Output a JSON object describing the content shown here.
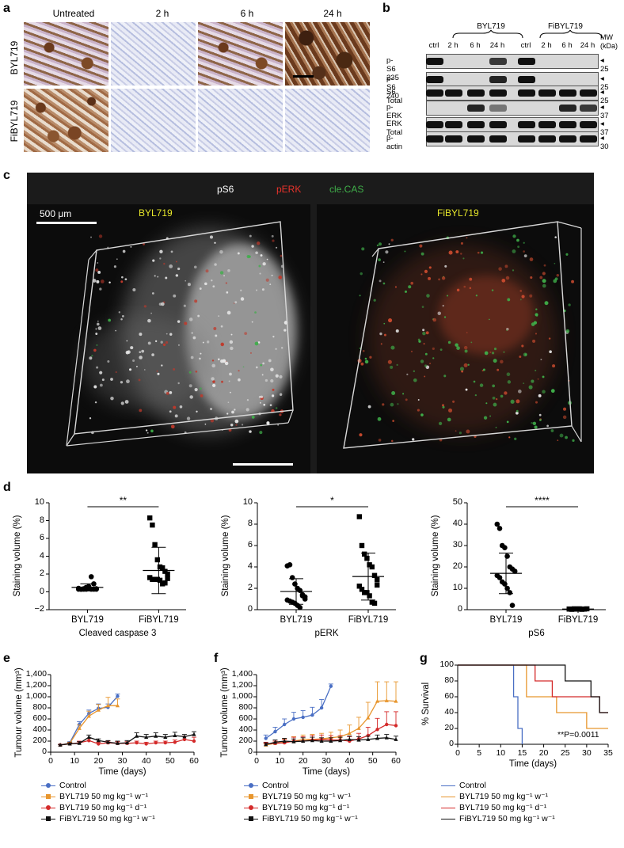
{
  "panel_labels": [
    "a",
    "b",
    "c",
    "d",
    "e",
    "f",
    "g"
  ],
  "panel_a": {
    "columns": [
      "Untreated",
      "2 h",
      "6 h",
      "24 h"
    ],
    "rows": [
      "BYL719",
      "FiBYL719"
    ]
  },
  "panel_b": {
    "group1": "BYL719",
    "group2": "FiBYL719",
    "lanes": [
      "ctrl",
      "2 h",
      "6 h",
      "24 h",
      "ctrl",
      "2 h",
      "6 h",
      "24 h"
    ],
    "mw_header": "MW\n(kDa)",
    "rows": [
      {
        "label": "p-S6 235",
        "mw": "25"
      },
      {
        "label": "p-S6 240",
        "mw": "25"
      },
      {
        "label": "S6 Total",
        "mw": "25"
      },
      {
        "label": "p-ERK",
        "mw": "37"
      },
      {
        "label": "ERK Total",
        "mw": "37"
      },
      {
        "label": "β-actin",
        "mw": "30"
      }
    ]
  },
  "panel_c": {
    "channels": [
      {
        "label": "pS6",
        "color": "#ffffff"
      },
      {
        "label": "pERK",
        "color": "#e8322b"
      },
      {
        "label": "cle.CAS",
        "color": "#3fae49"
      }
    ],
    "scale_label": "500 μm",
    "left_title": "BYL719",
    "right_title": "FiBYL719",
    "title_color": "#e6e62a"
  },
  "panel_d": {
    "charts": [
      {
        "ylabel": "Staining volume (%)",
        "xlabel": "Cleaved caspase 3",
        "categories": [
          "BYL719",
          "FiBYL719"
        ],
        "sig": "**",
        "yticks": [
          "10",
          "8",
          "6",
          "4",
          "2",
          "0",
          "−2"
        ]
      },
      {
        "ylabel": "Staining volume (%)",
        "xlabel": "pERK",
        "categories": [
          "BYL719",
          "FiBYL719"
        ],
        "sig": "*",
        "yticks": [
          "10",
          "8",
          "6",
          "4",
          "2",
          "0"
        ]
      },
      {
        "ylabel": "Staining volume (%)",
        "xlabel": "pS6",
        "categories": [
          "BYL719",
          "FiBYL719"
        ],
        "sig": "****",
        "yticks": [
          "50",
          "40",
          "30",
          "20",
          "10",
          "0"
        ]
      }
    ]
  },
  "panel_e": {
    "ylabel": "Tumour volume (mm³)",
    "xlabel": "Time (days)",
    "yticks": [
      "1,400",
      "1,200",
      "1,000",
      "800",
      "600",
      "400",
      "200",
      "0"
    ],
    "xticks": [
      "0",
      "10",
      "20",
      "30",
      "40",
      "50",
      "60"
    ]
  },
  "panel_f": {
    "ylabel": "Tumour volume (mm³)",
    "xlabel": "Time (days)",
    "yticks": [
      "1,400",
      "1,200",
      "1,000",
      "800",
      "600",
      "400",
      "200",
      "0"
    ],
    "xticks": [
      "0",
      "10",
      "20",
      "30",
      "40",
      "50",
      "60"
    ]
  },
  "panel_g": {
    "ylabel": "% Survival",
    "xlabel": "Time (days)",
    "yticks": [
      "100",
      "80",
      "60",
      "40",
      "20",
      "0"
    ],
    "xticks": [
      "0",
      "5",
      "10",
      "15",
      "20",
      "25",
      "30",
      "35"
    ],
    "pvalue": "**P=0.0011"
  },
  "legend": [
    {
      "label": "Control",
      "color": "#4a6fc4"
    },
    {
      "label": "BYL719 50 mg kg⁻¹ w⁻¹",
      "color": "#e8962e"
    },
    {
      "label": "BYL719 50 mg kg⁻¹ d⁻¹",
      "color": "#d42a2a"
    },
    {
      "label": "FiBYL719 50 mg kg⁻¹ w⁻¹",
      "color": "#111111"
    }
  ],
  "chart_data": [
    {
      "type": "scatter",
      "xlabel": "Cleaved caspase 3",
      "ylabel": "Staining volume (%)",
      "ylim": [
        -2,
        10
      ],
      "categories": [
        "BYL719",
        "FiBYL719"
      ],
      "series": [
        {
          "name": "BYL719",
          "values": [
            0.3,
            0.3,
            0.35,
            0.3,
            0.4,
            0.3,
            0.3,
            0.35,
            0.4,
            0.3,
            0.3,
            0.5,
            0.6,
            1.7,
            0.9,
            0.3
          ],
          "mean": 0.5,
          "sd": 0.4
        },
        {
          "name": "FiBYL719",
          "values": [
            8.3,
            7.5,
            5.3,
            3.6,
            2.8,
            2.7,
            2.3,
            2.0,
            1.6,
            1.4,
            1.4,
            1.4,
            1.3,
            0.9,
            1.0,
            1.5
          ],
          "mean": 2.4,
          "sd": 2.6
        }
      ]
    },
    {
      "type": "scatter",
      "xlabel": "pERK",
      "ylabel": "Staining volume (%)",
      "ylim": [
        0,
        10
      ],
      "categories": [
        "BYL719",
        "FiBYL719"
      ],
      "series": [
        {
          "name": "BYL719",
          "values": [
            4.1,
            4.2,
            3.0,
            2.4,
            2.0,
            1.8,
            1.3,
            1.2,
            0.9,
            0.8,
            0.7,
            0.6,
            0.4,
            0.2,
            1.4,
            1.0
          ],
          "mean": 1.7,
          "sd": 1.2
        },
        {
          "name": "FiBYL719",
          "values": [
            8.7,
            6.0,
            5.2,
            4.8,
            4.2,
            4.0,
            3.2,
            2.3,
            2.2,
            1.9,
            1.6,
            1.6,
            1.3,
            0.7,
            0.6,
            2.8
          ],
          "mean": 3.1,
          "sd": 2.2
        }
      ]
    },
    {
      "type": "scatter",
      "xlabel": "pS6",
      "ylabel": "Staining volume (%)",
      "ylim": [
        0,
        50
      ],
      "categories": [
        "BYL719",
        "FiBYL719"
      ],
      "series": [
        {
          "name": "BYL719",
          "values": [
            40,
            38,
            30,
            29,
            25,
            20,
            19,
            18,
            16,
            15,
            13,
            12,
            10,
            8,
            2
          ],
          "mean": 17,
          "sd": 9.5
        },
        {
          "name": "FiBYL719",
          "values": [
            0.3,
            0.2,
            0.4,
            0.3,
            0.3,
            0.2,
            0.3,
            0.4,
            0.3,
            0.2,
            0.3,
            0.3,
            0.4,
            0.2,
            0.3
          ],
          "mean": 0.3,
          "sd": 0.1
        }
      ]
    },
    {
      "type": "line",
      "xlabel": "Time (days)",
      "ylabel": "Tumour volume (mm³)",
      "xlim": [
        0,
        60
      ],
      "ylim": [
        0,
        1400
      ],
      "series": [
        {
          "name": "Control",
          "x": [
            4,
            8,
            12,
            16,
            20,
            24,
            28
          ],
          "y": [
            130,
            170,
            500,
            700,
            790,
            810,
            1010
          ],
          "err": [
            10,
            20,
            50,
            60,
            80,
            60,
            40
          ]
        },
        {
          "name": "BYL719 50 mg kg⁻¹ w⁻¹",
          "x": [
            4,
            8,
            12,
            16,
            20,
            24,
            28
          ],
          "y": [
            130,
            160,
            430,
            650,
            760,
            840,
            840
          ],
          "err": [
            10,
            20,
            60,
            90,
            100,
            150,
            120
          ]
        },
        {
          "name": "BYL719 50 mg kg⁻¹ d⁻¹",
          "x": [
            4,
            8,
            12,
            16,
            20,
            24,
            28,
            32,
            36,
            40,
            44,
            48,
            52,
            56,
            60
          ],
          "y": [
            130,
            150,
            170,
            210,
            150,
            170,
            160,
            160,
            170,
            150,
            170,
            170,
            180,
            230,
            200
          ],
          "err": [
            10,
            20,
            30,
            40,
            30,
            30,
            30,
            30,
            30,
            30,
            30,
            30,
            40,
            60,
            70
          ]
        },
        {
          "name": "FiBYL719 50 mg kg⁻¹ w⁻¹",
          "x": [
            4,
            8,
            12,
            16,
            20,
            24,
            28,
            32,
            36,
            40,
            44,
            48,
            52,
            56,
            60
          ],
          "y": [
            130,
            150,
            160,
            270,
            210,
            180,
            160,
            170,
            290,
            270,
            290,
            270,
            300,
            280,
            320
          ],
          "err": [
            10,
            20,
            30,
            40,
            30,
            30,
            40,
            40,
            60,
            50,
            60,
            50,
            60,
            40,
            50
          ]
        }
      ]
    },
    {
      "type": "line",
      "xlabel": "Time (days)",
      "ylabel": "Tumour volume (mm³)",
      "xlim": [
        0,
        60
      ],
      "ylim": [
        0,
        1400
      ],
      "series": [
        {
          "name": "Control",
          "x": [
            4,
            8,
            12,
            16,
            20,
            24,
            28,
            32
          ],
          "y": [
            250,
            370,
            500,
            600,
            630,
            670,
            800,
            1190
          ],
          "err": [
            60,
            80,
            100,
            120,
            120,
            140,
            150,
            40
          ]
        },
        {
          "name": "BYL719 50 mg kg⁻¹ w⁻¹",
          "x": [
            4,
            8,
            12,
            16,
            20,
            24,
            28,
            32,
            36,
            40,
            44,
            48,
            52,
            56,
            60
          ],
          "y": [
            130,
            160,
            180,
            200,
            230,
            230,
            240,
            260,
            280,
            340,
            430,
            620,
            920,
            930,
            920
          ],
          "err": [
            20,
            40,
            60,
            80,
            80,
            90,
            100,
            100,
            120,
            150,
            200,
            280,
            350,
            340,
            350
          ]
        },
        {
          "name": "BYL719 50 mg kg⁻¹ d⁻¹",
          "x": [
            4,
            8,
            12,
            16,
            20,
            24,
            28,
            32,
            36,
            40,
            44,
            48,
            52,
            56,
            60
          ],
          "y": [
            150,
            160,
            170,
            200,
            200,
            220,
            230,
            220,
            220,
            200,
            240,
            300,
            410,
            500,
            480
          ],
          "err": [
            30,
            40,
            60,
            70,
            80,
            80,
            80,
            80,
            80,
            80,
            100,
            150,
            200,
            230,
            250
          ]
        },
        {
          "name": "FiBYL719 50 mg kg⁻¹ w⁻¹",
          "x": [
            4,
            8,
            12,
            16,
            20,
            24,
            28,
            32,
            36,
            40,
            44,
            48,
            52,
            56,
            60
          ],
          "y": [
            140,
            180,
            200,
            190,
            200,
            210,
            200,
            200,
            210,
            230,
            220,
            230,
            250,
            260,
            230
          ],
          "err": [
            30,
            40,
            50,
            50,
            60,
            60,
            60,
            60,
            60,
            60,
            60,
            60,
            60,
            60,
            60
          ]
        }
      ]
    },
    {
      "type": "line",
      "xlabel": "Time (days)",
      "ylabel": "% Survival",
      "xlim": [
        0,
        35
      ],
      "ylim": [
        0,
        100
      ],
      "series": [
        {
          "name": "Control",
          "x": [
            0,
            12,
            13,
            14,
            15
          ],
          "y": [
            100,
            100,
            60,
            20,
            0
          ]
        },
        {
          "name": "BYL719 50 mg kg⁻¹ w⁻¹",
          "x": [
            0,
            15,
            16,
            23,
            30,
            33,
            35
          ],
          "y": [
            100,
            100,
            60,
            40,
            20,
            20,
            20
          ]
        },
        {
          "name": "BYL719 50 mg kg⁻¹ d⁻¹",
          "x": [
            0,
            17,
            18,
            21,
            22,
            32,
            33,
            35
          ],
          "y": [
            100,
            100,
            80,
            80,
            60,
            60,
            40,
            40
          ]
        },
        {
          "name": "FiBYL719 50 mg kg⁻¹ w⁻¹",
          "x": [
            0,
            24,
            25,
            30,
            31,
            33,
            35
          ],
          "y": [
            100,
            100,
            80,
            80,
            60,
            40,
            40
          ]
        }
      ]
    }
  ]
}
